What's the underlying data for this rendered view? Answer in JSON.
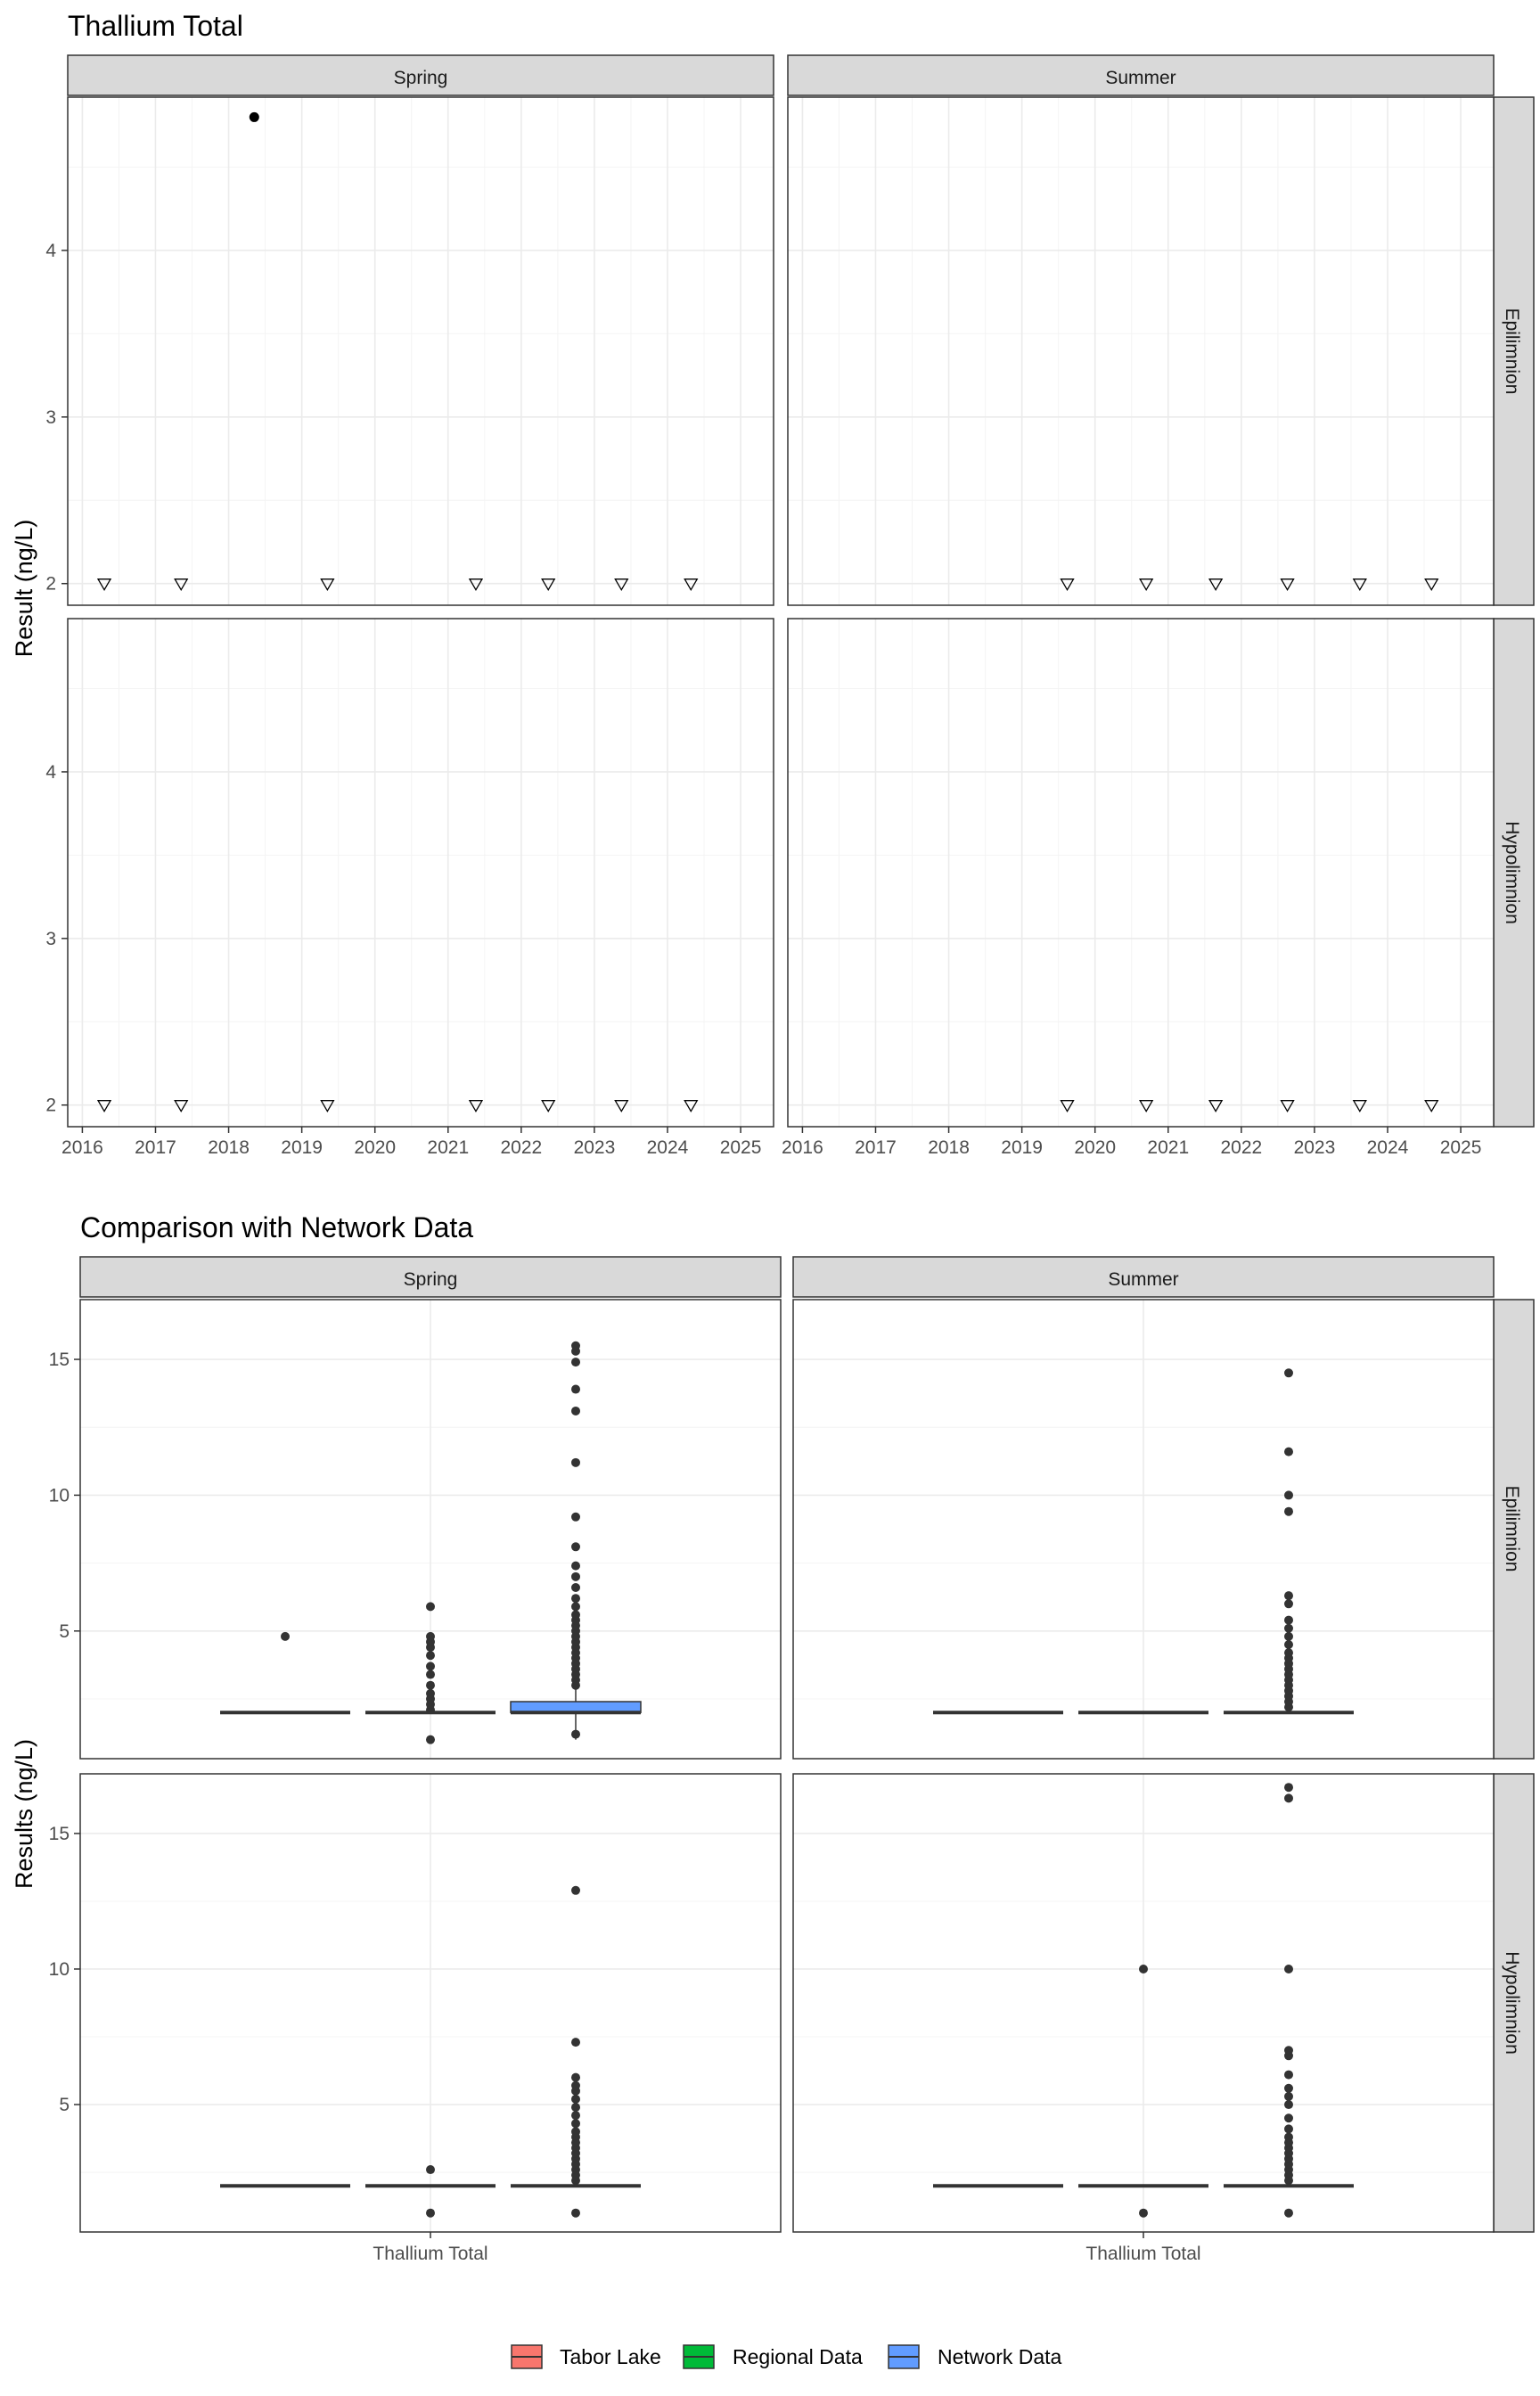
{
  "colors": {
    "strip_bg": "#d9d9d9",
    "grid_major": "#ebebeb",
    "grid_minor": "#f4f4f4",
    "panel_border": "#333333",
    "point": "#000000",
    "box_point": "#333333",
    "tabor": "#f8766d",
    "regional": "#00ba38",
    "network": "#619cff"
  },
  "chart_data": [
    {
      "type": "scatter",
      "title": "Thallium Total",
      "xlabel": "",
      "ylabel": "Result (ng/L)",
      "xlim": [
        2015.8,
        2025.45
      ],
      "ylim": [
        1.87,
        4.92
      ],
      "x_ticks": [
        2016,
        2017,
        2018,
        2019,
        2020,
        2021,
        2022,
        2023,
        2024,
        2025
      ],
      "y_ticks": [
        2,
        3,
        4
      ],
      "columns": [
        "Spring",
        "Summer"
      ],
      "rows": [
        "Epilimnion",
        "Hypolimnion"
      ],
      "grid": true,
      "panels": [
        {
          "column": "Spring",
          "row": "Epilimnion",
          "detects": [
            {
              "x": 2018.35,
              "y": 4.8
            }
          ],
          "non_detects": [
            {
              "x": 2016.3,
              "y": 2
            },
            {
              "x": 2017.35,
              "y": 2
            },
            {
              "x": 2019.35,
              "y": 2
            },
            {
              "x": 2021.38,
              "y": 2
            },
            {
              "x": 2022.37,
              "y": 2
            },
            {
              "x": 2023.37,
              "y": 2
            },
            {
              "x": 2024.32,
              "y": 2
            }
          ]
        },
        {
          "column": "Summer",
          "row": "Epilimnion",
          "detects": [],
          "non_detects": [
            {
              "x": 2019.62,
              "y": 2
            },
            {
              "x": 2020.7,
              "y": 2
            },
            {
              "x": 2021.65,
              "y": 2
            },
            {
              "x": 2022.63,
              "y": 2
            },
            {
              "x": 2023.62,
              "y": 2
            },
            {
              "x": 2024.6,
              "y": 2
            }
          ]
        },
        {
          "column": "Spring",
          "row": "Hypolimnion",
          "detects": [],
          "non_detects": [
            {
              "x": 2016.3,
              "y": 2
            },
            {
              "x": 2017.35,
              "y": 2
            },
            {
              "x": 2019.35,
              "y": 2
            },
            {
              "x": 2021.38,
              "y": 2
            },
            {
              "x": 2022.37,
              "y": 2
            },
            {
              "x": 2023.37,
              "y": 2
            },
            {
              "x": 2024.32,
              "y": 2
            }
          ]
        },
        {
          "column": "Summer",
          "row": "Hypolimnion",
          "detects": [],
          "non_detects": [
            {
              "x": 2019.62,
              "y": 2
            },
            {
              "x": 2020.7,
              "y": 2
            },
            {
              "x": 2021.65,
              "y": 2
            },
            {
              "x": 2022.63,
              "y": 2
            },
            {
              "x": 2023.62,
              "y": 2
            },
            {
              "x": 2024.6,
              "y": 2
            }
          ]
        }
      ]
    },
    {
      "type": "box",
      "title": "Comparison with Network Data",
      "xlabel": "",
      "ylabel": "Results (ng/L)",
      "category": "Thallium Total",
      "ylim": [
        0.3,
        17.2
      ],
      "y_ticks": [
        5,
        10,
        15
      ],
      "columns": [
        "Spring",
        "Summer"
      ],
      "rows": [
        "Epilimnion",
        "Hypolimnion"
      ],
      "grid": true,
      "legend_position": "bottom",
      "legend": [
        "Tabor Lake",
        "Regional Data",
        "Network Data"
      ],
      "panels": [
        {
          "column": "Spring",
          "row": "Epilimnion",
          "boxes": [
            {
              "series": "Tabor Lake",
              "q1": 2,
              "median": 2,
              "q3": 2,
              "whisker_low": 2,
              "whisker_high": 2,
              "outliers": [
                4.8
              ]
            },
            {
              "series": "Regional Data",
              "q1": 2,
              "median": 2,
              "q3": 2,
              "whisker_low": 2,
              "whisker_high": 2,
              "outliers": [
                1,
                2.1,
                2.3,
                2.5,
                2.7,
                3,
                3.4,
                3.7,
                4.1,
                4.4,
                4.6,
                4.8,
                5.9
              ]
            },
            {
              "series": "Network Data",
              "q1": 2,
              "median": 2,
              "q3": 2.4,
              "whisker_low": 1.0,
              "whisker_high": 2.9,
              "outliers": [
                1.2,
                3.0,
                3.2,
                3.4,
                3.6,
                3.8,
                4.0,
                4.2,
                4.4,
                4.6,
                4.8,
                5.0,
                5.2,
                5.4,
                5.6,
                5.9,
                6.2,
                6.6,
                7.0,
                7.4,
                8.1,
                9.2,
                11.2,
                13.1,
                13.9,
                14.9,
                15.3,
                15.5
              ]
            }
          ]
        },
        {
          "column": "Summer",
          "row": "Epilimnion",
          "boxes": [
            {
              "series": "Tabor Lake",
              "q1": 2,
              "median": 2,
              "q3": 2,
              "whisker_low": 2,
              "whisker_high": 2,
              "outliers": []
            },
            {
              "series": "Regional Data",
              "q1": 2,
              "median": 2,
              "q3": 2,
              "whisker_low": 2,
              "whisker_high": 2,
              "outliers": []
            },
            {
              "series": "Network Data",
              "q1": 2,
              "median": 2,
              "q3": 2,
              "whisker_low": 2,
              "whisker_high": 2,
              "outliers": [
                2.2,
                2.4,
                2.6,
                2.8,
                3.0,
                3.2,
                3.4,
                3.6,
                3.8,
                4.0,
                4.2,
                4.5,
                4.8,
                5.1,
                5.4,
                6.0,
                6.3,
                9.4,
                10.0,
                11.6,
                14.5
              ]
            }
          ]
        },
        {
          "column": "Spring",
          "row": "Hypolimnion",
          "boxes": [
            {
              "series": "Tabor Lake",
              "q1": 2,
              "median": 2,
              "q3": 2,
              "whisker_low": 2,
              "whisker_high": 2,
              "outliers": []
            },
            {
              "series": "Regional Data",
              "q1": 2,
              "median": 2,
              "q3": 2,
              "whisker_low": 2,
              "whisker_high": 2,
              "outliers": [
                1,
                2.6
              ]
            },
            {
              "series": "Network Data",
              "q1": 2,
              "median": 2,
              "q3": 2,
              "whisker_low": 2,
              "whisker_high": 2,
              "outliers": [
                1,
                2.2,
                2.4,
                2.6,
                2.8,
                3.0,
                3.2,
                3.4,
                3.6,
                3.8,
                4.0,
                4.3,
                4.6,
                4.9,
                5.2,
                5.5,
                5.7,
                6.0,
                7.3,
                12.9
              ]
            }
          ]
        },
        {
          "column": "Summer",
          "row": "Hypolimnion",
          "boxes": [
            {
              "series": "Tabor Lake",
              "q1": 2,
              "median": 2,
              "q3": 2,
              "whisker_low": 2,
              "whisker_high": 2,
              "outliers": []
            },
            {
              "series": "Regional Data",
              "q1": 2,
              "median": 2,
              "q3": 2,
              "whisker_low": 2,
              "whisker_high": 2,
              "outliers": [
                1,
                10
              ]
            },
            {
              "series": "Network Data",
              "q1": 2,
              "median": 2,
              "q3": 2,
              "whisker_low": 2,
              "whisker_high": 2,
              "outliers": [
                1,
                2.2,
                2.4,
                2.6,
                2.8,
                3.0,
                3.2,
                3.4,
                3.6,
                3.8,
                4.1,
                4.5,
                5.0,
                5.3,
                5.6,
                6.1,
                6.8,
                7.0,
                10.0,
                16.3,
                16.7
              ]
            }
          ]
        }
      ]
    }
  ]
}
